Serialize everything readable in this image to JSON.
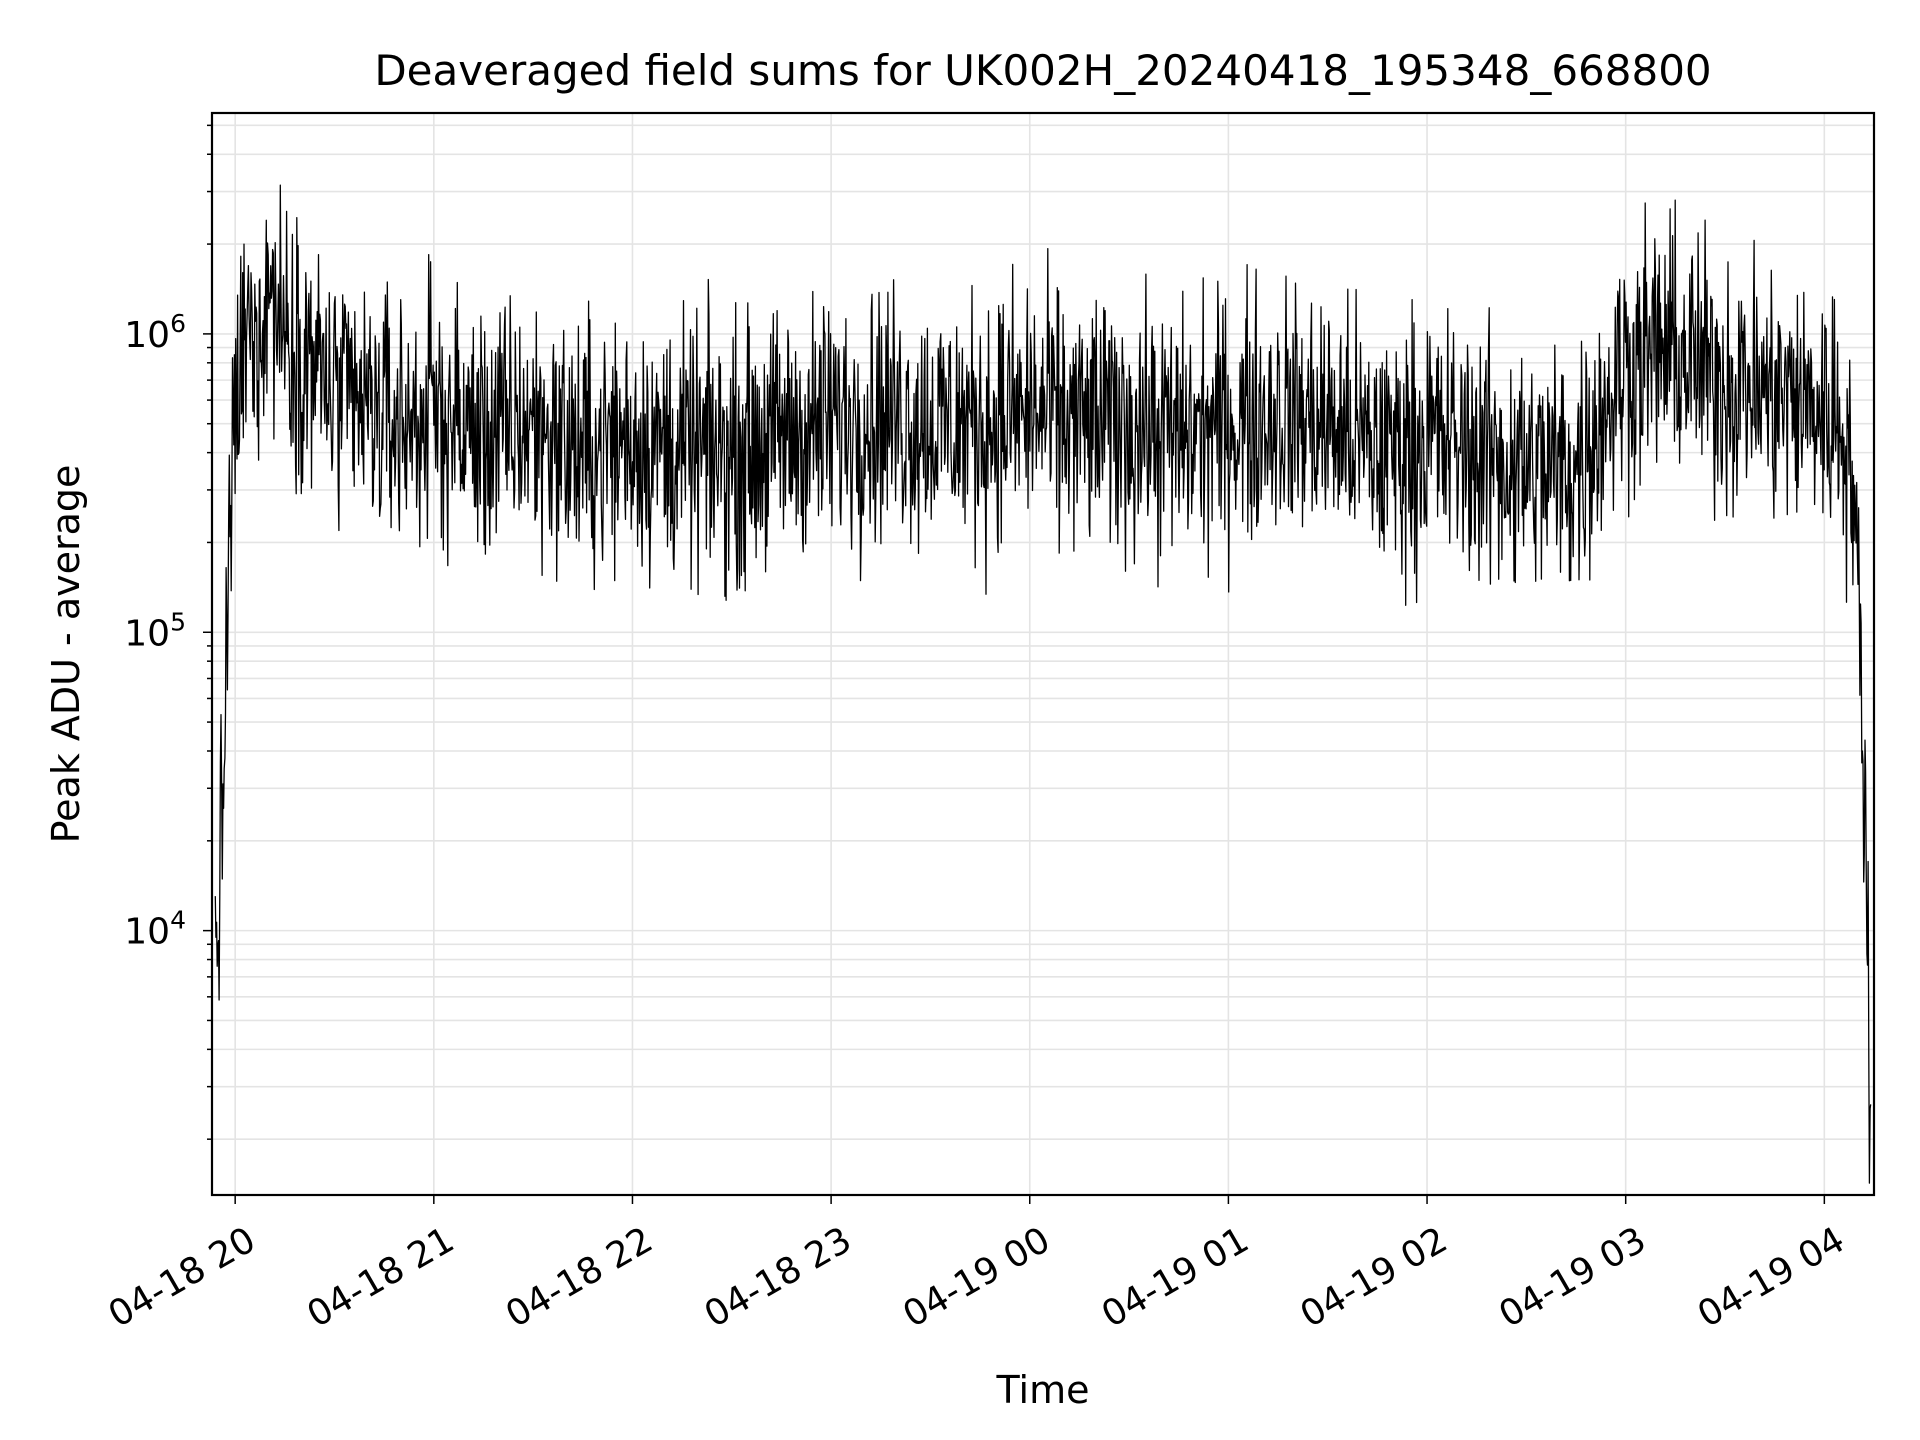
{
  "chart_data": {
    "type": "line",
    "title": "Deaveraged field sums for UK002H_20240418_195348_668800",
    "xlabel": "Time",
    "ylabel": "Peak ADU - average",
    "yscale": "log",
    "ylim": [
      1300,
      5500000
    ],
    "xlim": [
      "2024-04-18 19:53",
      "2024-04-19 04:15"
    ],
    "grid": true,
    "legend": "none",
    "line_color": "#000000",
    "x_ticks": [
      "04-18 20",
      "04-18 21",
      "04-18 22",
      "04-18 23",
      "04-19 00",
      "04-19 01",
      "04-19 02",
      "04-19 03",
      "04-19 04"
    ],
    "y_ticks": [
      {
        "value": 10000,
        "base": "10",
        "exp": "4"
      },
      {
        "value": 100000,
        "base": "10",
        "exp": "5"
      },
      {
        "value": 1000000,
        "base": "10",
        "exp": "6"
      }
    ],
    "series": [
      {
        "x": [
          "2024-04-18 19:54",
          "2024-04-18 19:55",
          "2024-04-18 19:56",
          "2024-04-18 19:57",
          "2024-04-18 19:58",
          "2024-04-18 19:59",
          "2024-04-18 20:00",
          "2024-04-18 20:02",
          "2024-04-18 20:04",
          "2024-04-18 20:06",
          "2024-04-18 20:08",
          "2024-04-18 20:10",
          "2024-04-18 20:13",
          "2024-04-18 20:16",
          "2024-04-18 20:20",
          "2024-04-18 20:24",
          "2024-04-18 20:30",
          "2024-04-18 20:40",
          "2024-04-18 20:50",
          "2024-04-18 21:00",
          "2024-04-18 21:15",
          "2024-04-18 21:30",
          "2024-04-18 21:45",
          "2024-04-18 22:00",
          "2024-04-18 22:15",
          "2024-04-18 22:30",
          "2024-04-18 22:45",
          "2024-04-18 23:00",
          "2024-04-18 23:15",
          "2024-04-18 23:30",
          "2024-04-18 23:45",
          "2024-04-19 00:00",
          "2024-04-19 00:15",
          "2024-04-19 00:30",
          "2024-04-19 00:45",
          "2024-04-19 01:00",
          "2024-04-19 01:15",
          "2024-04-19 01:30",
          "2024-04-19 01:45",
          "2024-04-19 02:00",
          "2024-04-19 02:15",
          "2024-04-19 02:30",
          "2024-04-19 02:45",
          "2024-04-19 03:00",
          "2024-04-19 03:10",
          "2024-04-19 03:20",
          "2024-04-19 03:30",
          "2024-04-19 03:40",
          "2024-04-19 03:50",
          "2024-04-19 04:00",
          "2024-04-19 04:05",
          "2024-04-19 04:08",
          "2024-04-19 04:10",
          "2024-04-19 04:12",
          "2024-04-19 04:13",
          "2024-04-19 04:14"
        ],
        "y": [
          8000,
          12000,
          20000,
          60000,
          150000,
          300000,
          500000,
          800000,
          1000000,
          900000,
          1200000,
          1500000,
          1200000,
          1000000,
          900000,
          800000,
          600000,
          550000,
          500000,
          550000,
          450000,
          500000,
          400000,
          450000,
          400000,
          400000,
          450000,
          500000,
          550000,
          500000,
          500000,
          550000,
          500000,
          500000,
          450000,
          500000,
          550000,
          500000,
          400000,
          450000,
          400000,
          350000,
          350000,
          800000,
          900000,
          800000,
          700000,
          650000,
          600000,
          550000,
          500000,
          400000,
          150000,
          40000,
          8000,
          2000
        ]
      }
    ]
  }
}
